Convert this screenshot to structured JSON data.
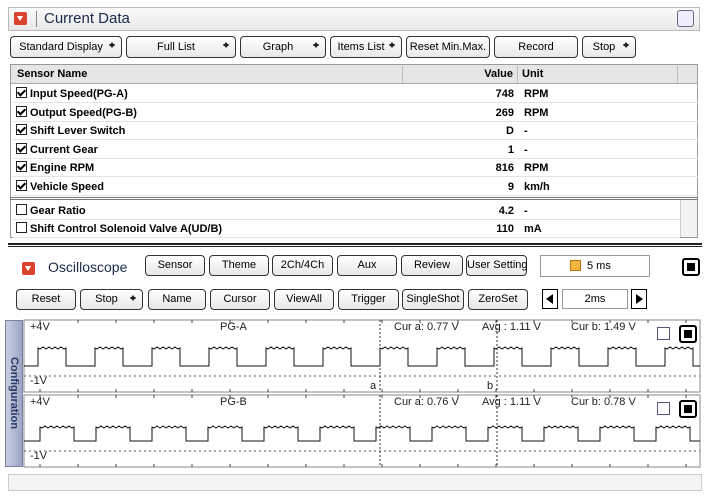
{
  "header": {
    "title": "Current Data"
  },
  "toolbar": [
    "Standard Display",
    "Full List",
    "Graph",
    "Items List",
    "Reset Min.Max.",
    "Record",
    "Stop"
  ],
  "table": {
    "columns": [
      "Sensor Name",
      "Value",
      "Unit"
    ],
    "rows": [
      [
        "Input Speed(PG-A)",
        "748",
        "RPM"
      ],
      [
        "Output Speed(PG-B)",
        "269",
        "RPM"
      ],
      [
        "Shift Lever Switch",
        "D",
        "-"
      ],
      [
        "Current Gear",
        "1",
        "-"
      ],
      [
        "Engine RPM",
        "816",
        "RPM"
      ],
      [
        "Vehicle Speed",
        "9",
        "km/h"
      ],
      [
        "Gear Ratio",
        "4.2",
        "-"
      ],
      [
        "Shift Control Solenoid Valve A(UD/B)",
        "110",
        "mA"
      ]
    ]
  },
  "oscilloscope": {
    "title": "Oscilloscope",
    "buttons": [
      "Sensor",
      "Theme",
      "2Ch/4Ch",
      "Aux",
      "Review",
      "User Setting"
    ],
    "time_div": "5 ms",
    "controls": [
      "Reset",
      "Stop",
      "Name",
      "Cursor",
      "ViewAll",
      "Trigger",
      "SingleShot",
      "ZeroSet"
    ],
    "zoom": "2ms",
    "side_tab": "Configuration",
    "cursors": [
      "a",
      "b"
    ],
    "channels": [
      {
        "top": "+4V",
        "name": "PG-A",
        "cur_a": "Cur a: 0.77 V",
        "avg": "Avg : 1.11 V",
        "cur_b": "Cur b: 1.49 V",
        "bottom": "-1V"
      },
      {
        "top": "+4V",
        "name": "PG-B",
        "cur_a": "Cur a: 0.76 V",
        "avg": "Avg : 1.11 V",
        "cur_b": "Cur b: 0.78 V",
        "bottom": "-1V"
      }
    ]
  }
}
